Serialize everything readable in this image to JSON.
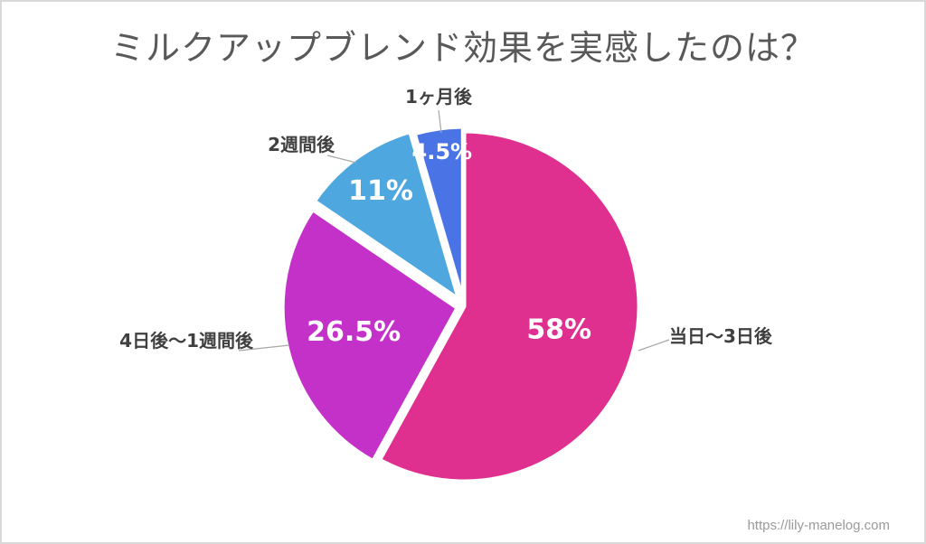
{
  "title": "ミルクアップブレンド効果を実感したのは？",
  "watermark": "https://lily-manelog.com",
  "chart_data": {
    "type": "pie",
    "title": "ミルクアップブレンド効果を実感したのは？",
    "slices": [
      {
        "label": "当日〜3日後",
        "value": 58,
        "value_label": "58%",
        "color": "#e0308f"
      },
      {
        "label": "4日後〜1週間後",
        "value": 26.5,
        "value_label": "26.5%",
        "color": "#c431c9"
      },
      {
        "label": "2週間後",
        "value": 11,
        "value_label": "11%",
        "color": "#4ea8df"
      },
      {
        "label": "1ヶ月後",
        "value": 4.5,
        "value_label": "4.5%",
        "color": "#4a73e5"
      }
    ],
    "start": "12 o'clock",
    "direction": "clockwise",
    "legend": "none"
  }
}
